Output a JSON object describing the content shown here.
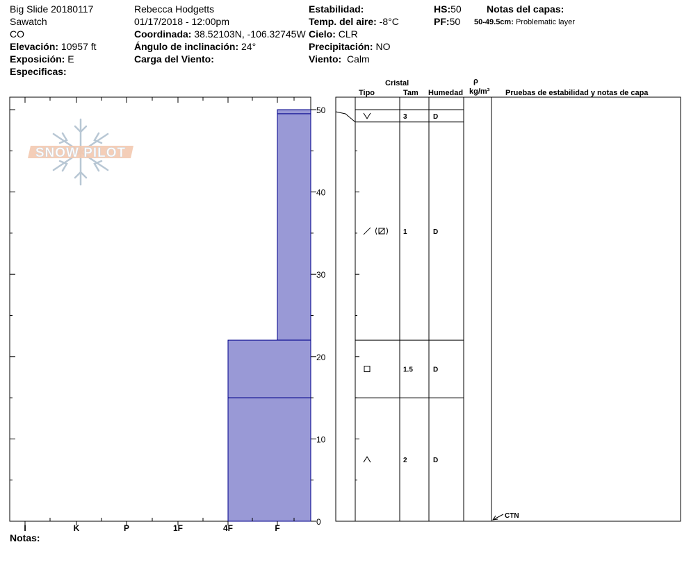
{
  "header": {
    "location": "Big Slide 20180117",
    "range": "Sawatch",
    "state": "CO",
    "elevation_label": "Elevación:",
    "elevation_value": "10957 ft",
    "aspect_label": "Exposición:",
    "aspect_value": "E",
    "specifics_label": "Especificas:",
    "observer": "Rebecca Hodgetts",
    "datetime": "01/17/2018 - 12:00pm",
    "coords_label": "Coordinada:",
    "coords_value": "38.52103N, -106.32745W",
    "slope_label": "Ángulo de inclinación:",
    "slope_value": "24°",
    "wind_load_label": "Carga del Viento:",
    "stability_label": "Estabilidad:",
    "air_temp_label": "Temp. del aire:",
    "air_temp_value": "-8°C",
    "sky_label": "Cielo:",
    "sky_value": "CLR",
    "precip_label": "Precipitación:",
    "precip_value": "NO",
    "wind_label": "Viento:",
    "wind_value": "Calm",
    "hs_label": "HS:",
    "hs_value": "50",
    "pf_label": "PF:",
    "pf_value": "50",
    "layer_notes_title": "Notas del capas:",
    "layer_note_range": "50-49.5cm:",
    "layer_note_text": "Problematic layer"
  },
  "logo_text": "SNOW PILOT",
  "notes_label": "Notas:",
  "table_headers": {
    "crystal": "Cristal",
    "type": "Tipo",
    "size": "Tam",
    "moisture": "Humedad",
    "density_symbol": "ρ",
    "density_unit": "kg/m³",
    "tests": "Pruebas de estabilidad y notas de capa"
  },
  "ctn_label": "CTN",
  "chart_data": {
    "type": "bar",
    "orientation": "horizontal",
    "xlabel": "",
    "ylabel": "",
    "x_categories": [
      "I",
      "K",
      "P",
      "1F",
      "4F",
      "F"
    ],
    "ylim": [
      0,
      50
    ],
    "y_ticks": [
      0,
      10,
      20,
      30,
      40,
      50
    ],
    "layers": [
      {
        "top": 50,
        "bottom": 49.5,
        "hardness": "F"
      },
      {
        "top": 49.5,
        "bottom": 22,
        "hardness": "F"
      },
      {
        "top": 22,
        "bottom": 15,
        "hardness": "4F"
      },
      {
        "top": 15,
        "bottom": 0,
        "hardness": "4F"
      }
    ],
    "table_layers": [
      {
        "top": 50,
        "bottom": 48.5,
        "grain_icon": "surface-hoar-icon",
        "size": "3",
        "moisture": "D"
      },
      {
        "top": 48.5,
        "bottom": 22,
        "grain_icon": "decomposing-faceted-icon",
        "size": "1",
        "moisture": "D"
      },
      {
        "top": 22,
        "bottom": 15,
        "grain_icon": "faceted-square-icon",
        "size": "1.5",
        "moisture": "D"
      },
      {
        "top": 15,
        "bottom": 0,
        "grain_icon": "depth-hoar-icon",
        "size": "2",
        "moisture": "D"
      }
    ],
    "colors": {
      "fill": "#9999d6",
      "line": "#00008b"
    }
  }
}
